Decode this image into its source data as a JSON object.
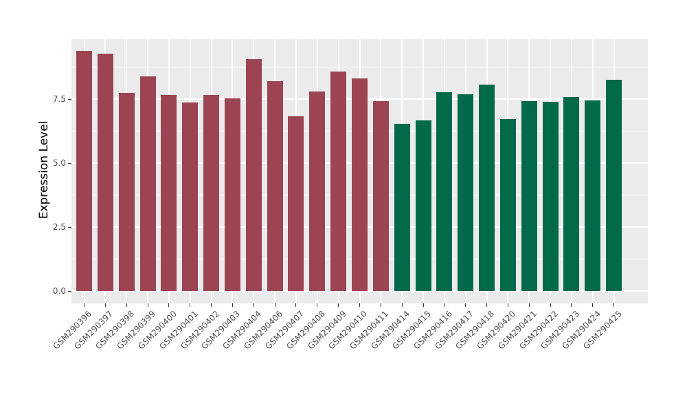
{
  "chart_data": {
    "type": "bar",
    "ylabel": "Expression Level",
    "categories": [
      "GSM290396",
      "GSM290397",
      "GSM290398",
      "GSM290399",
      "GSM290400",
      "GSM290401",
      "GSM290402",
      "GSM290403",
      "GSM290404",
      "GSM290406",
      "GSM290407",
      "GSM290408",
      "GSM290409",
      "GSM290410",
      "GSM290411",
      "GSM290414",
      "GSM290415",
      "GSM290416",
      "GSM290417",
      "GSM290418",
      "GSM290420",
      "GSM290421",
      "GSM290422",
      "GSM290423",
      "GSM290424",
      "GSM290425"
    ],
    "values": [
      9.38,
      9.28,
      7.74,
      8.39,
      7.67,
      7.36,
      7.67,
      7.54,
      9.05,
      8.19,
      6.83,
      7.8,
      8.57,
      8.3,
      7.43,
      6.53,
      6.67,
      7.76,
      7.7,
      8.06,
      6.72,
      7.42,
      7.38,
      7.57,
      7.45,
      8.26
    ],
    "bar_groups": [
      0,
      0,
      0,
      0,
      0,
      0,
      0,
      0,
      0,
      0,
      0,
      0,
      0,
      0,
      0,
      1,
      1,
      1,
      1,
      1,
      1,
      1,
      1,
      1,
      1,
      1
    ],
    "group_colors": [
      "#9C4452",
      "#026A4B"
    ],
    "ylim": [
      0,
      9.85
    ],
    "ytick_labels": [
      "0.0",
      "2.5",
      "5.0",
      "7.5"
    ],
    "ytick_values": [
      0,
      2.5,
      5,
      7.5
    ],
    "minor_tick_values": [
      1.25,
      3.75,
      6.25,
      8.75
    ],
    "grid": true,
    "legend_position": "none",
    "panel_background": "#EBEBEB",
    "gridline_color": "#FFFFFF",
    "axis_text_color": "#4D4D4D",
    "axis_title_color": "#000000"
  }
}
